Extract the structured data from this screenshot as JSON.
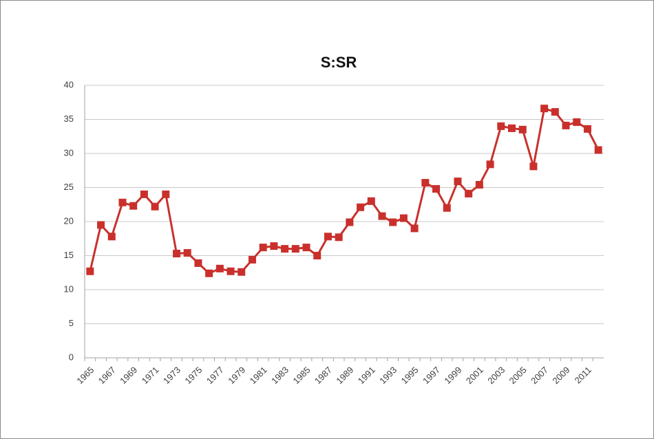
{
  "chart_data": {
    "type": "line",
    "title": "S:SR",
    "categories": [
      "1965",
      null,
      "1967",
      null,
      "1969",
      null,
      "1971",
      null,
      "1973",
      null,
      "1975",
      null,
      "1977",
      null,
      "1979",
      null,
      "1981",
      null,
      "1983",
      null,
      "1985",
      null,
      "1987",
      null,
      "1989",
      null,
      "1991",
      null,
      "1993",
      null,
      "1995",
      null,
      "1997",
      null,
      "1999",
      null,
      "2001",
      null,
      "2003",
      null,
      "2005",
      null,
      "2007",
      null,
      "2009",
      null,
      "2011",
      null
    ],
    "series": [
      {
        "name": null,
        "color": "#c9302c",
        "values": [
          12.7,
          19.5,
          17.8,
          22.8,
          22.3,
          24.0,
          22.2,
          24.0,
          15.3,
          15.4,
          13.9,
          12.4,
          13.1,
          12.7,
          12.6,
          14.4,
          16.2,
          16.4,
          16.0,
          16.0,
          16.2,
          15.0,
          17.8,
          17.7,
          19.9,
          22.1,
          23.0,
          20.8,
          19.9,
          20.5,
          19.0,
          25.7,
          24.8,
          22.0,
          25.9,
          24.1,
          25.4,
          28.4,
          34.0,
          33.7,
          33.5,
          28.1,
          36.6,
          36.1,
          34.1,
          34.6,
          33.6,
          30.5
        ]
      }
    ],
    "ylim": [
      0,
      40
    ],
    "yticks": [
      0,
      5,
      10,
      15,
      20,
      25,
      30,
      35,
      40
    ],
    "grid": true
  }
}
